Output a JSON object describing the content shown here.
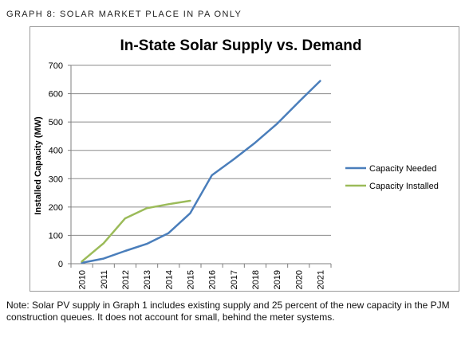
{
  "header": {
    "label": "GRAPH 8: SOLAR MARKET PLACE IN PA ONLY"
  },
  "note": {
    "line1": "Note:  Solar PV supply in Graph 1 includes existing supply and 25 percent of the new capacity in the PJM",
    "line2": "construction queues. It does not account for small, behind the meter systems."
  },
  "chart_data": {
    "type": "line",
    "title": "In-State Solar Supply vs. Demand",
    "xlabel": "",
    "ylabel": "Installed Capacity (MW)",
    "ylim": [
      0,
      700
    ],
    "yticks": [
      0,
      100,
      200,
      300,
      400,
      500,
      600,
      700
    ],
    "categories": [
      "2010",
      "2011",
      "2012",
      "2013",
      "2014",
      "2015",
      "2016",
      "2017",
      "2018",
      "2019",
      "2020",
      "2021"
    ],
    "grid": "horizontal",
    "legend_position": "right",
    "series": [
      {
        "name": "Capacity Needed",
        "color": "#4a7ebb",
        "values": [
          3,
          18,
          45,
          70,
          108,
          178,
          312,
          368,
          427,
          493,
          570,
          645
        ]
      },
      {
        "name": "Capacity Installed",
        "color": "#9bbb59",
        "values": [
          8,
          72,
          160,
          196,
          210,
          222,
          null,
          null,
          null,
          null,
          null,
          null
        ]
      }
    ]
  }
}
